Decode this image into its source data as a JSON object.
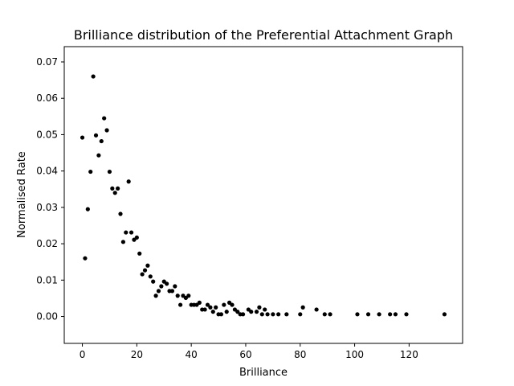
{
  "chart_data": {
    "type": "scatter",
    "title": "Brilliance distribution of the Preferential Attachment Graph",
    "xlabel": "Brilliance",
    "ylabel": "Normalised Rate",
    "xlim": [
      -6.65,
      139.65
    ],
    "ylim": [
      -0.0074,
      0.0742
    ],
    "xticks": [
      0,
      20,
      40,
      60,
      80,
      100,
      120
    ],
    "xtick_labels": [
      "0",
      "20",
      "40",
      "60",
      "80",
      "100",
      "120"
    ],
    "yticks": [
      0.0,
      0.01,
      0.02,
      0.03,
      0.04,
      0.05,
      0.06,
      0.07
    ],
    "ytick_labels": [
      "0.00",
      "0.01",
      "0.02",
      "0.03",
      "0.04",
      "0.05",
      "0.06",
      "0.07"
    ],
    "grid": false,
    "legend": "none",
    "marker_color": "#000000",
    "points": [
      {
        "x": 0,
        "y": 0.0492
      },
      {
        "x": 1,
        "y": 0.016
      },
      {
        "x": 2,
        "y": 0.0295
      },
      {
        "x": 3,
        "y": 0.0398
      },
      {
        "x": 4,
        "y": 0.066
      },
      {
        "x": 5,
        "y": 0.0498
      },
      {
        "x": 6,
        "y": 0.0443
      },
      {
        "x": 7,
        "y": 0.0482
      },
      {
        "x": 8,
        "y": 0.0545
      },
      {
        "x": 9,
        "y": 0.0512
      },
      {
        "x": 10,
        "y": 0.0398
      },
      {
        "x": 11,
        "y": 0.0352
      },
      {
        "x": 12,
        "y": 0.034
      },
      {
        "x": 13,
        "y": 0.0352
      },
      {
        "x": 14,
        "y": 0.0282
      },
      {
        "x": 15,
        "y": 0.0205
      },
      {
        "x": 16,
        "y": 0.0231
      },
      {
        "x": 17,
        "y": 0.0371
      },
      {
        "x": 18,
        "y": 0.0231
      },
      {
        "x": 19,
        "y": 0.0211
      },
      {
        "x": 20,
        "y": 0.0217
      },
      {
        "x": 21,
        "y": 0.0173
      },
      {
        "x": 22,
        "y": 0.0116
      },
      {
        "x": 23,
        "y": 0.0127
      },
      {
        "x": 24,
        "y": 0.014
      },
      {
        "x": 25,
        "y": 0.011
      },
      {
        "x": 26,
        "y": 0.0096
      },
      {
        "x": 27,
        "y": 0.0057
      },
      {
        "x": 28,
        "y": 0.007
      },
      {
        "x": 29,
        "y": 0.0083
      },
      {
        "x": 30,
        "y": 0.0096
      },
      {
        "x": 31,
        "y": 0.009
      },
      {
        "x": 32,
        "y": 0.007
      },
      {
        "x": 33,
        "y": 0.007
      },
      {
        "x": 34,
        "y": 0.0083
      },
      {
        "x": 35,
        "y": 0.0057
      },
      {
        "x": 36,
        "y": 0.0032
      },
      {
        "x": 37,
        "y": 0.0057
      },
      {
        "x": 38,
        "y": 0.0051
      },
      {
        "x": 39,
        "y": 0.0057
      },
      {
        "x": 40,
        "y": 0.0032
      },
      {
        "x": 41,
        "y": 0.0032
      },
      {
        "x": 42,
        "y": 0.0032
      },
      {
        "x": 43,
        "y": 0.0038
      },
      {
        "x": 44,
        "y": 0.0019
      },
      {
        "x": 45,
        "y": 0.0019
      },
      {
        "x": 46,
        "y": 0.0032
      },
      {
        "x": 47,
        "y": 0.0025
      },
      {
        "x": 48,
        "y": 0.0013
      },
      {
        "x": 49,
        "y": 0.0025
      },
      {
        "x": 50,
        "y": 0.0006
      },
      {
        "x": 51,
        "y": 0.0006
      },
      {
        "x": 52,
        "y": 0.0032
      },
      {
        "x": 53,
        "y": 0.0013
      },
      {
        "x": 54,
        "y": 0.0038
      },
      {
        "x": 55,
        "y": 0.0032
      },
      {
        "x": 56,
        "y": 0.0019
      },
      {
        "x": 57,
        "y": 0.0013
      },
      {
        "x": 58,
        "y": 0.0006
      },
      {
        "x": 59,
        "y": 0.0006
      },
      {
        "x": 61,
        "y": 0.0019
      },
      {
        "x": 62,
        "y": 0.0013
      },
      {
        "x": 64,
        "y": 0.0013
      },
      {
        "x": 65,
        "y": 0.0025
      },
      {
        "x": 66,
        "y": 0.0006
      },
      {
        "x": 67,
        "y": 0.0019
      },
      {
        "x": 68,
        "y": 0.0006
      },
      {
        "x": 70,
        "y": 0.0006
      },
      {
        "x": 72,
        "y": 0.0006
      },
      {
        "x": 75,
        "y": 0.0006
      },
      {
        "x": 80,
        "y": 0.0006
      },
      {
        "x": 81,
        "y": 0.0025
      },
      {
        "x": 86,
        "y": 0.0019
      },
      {
        "x": 89,
        "y": 0.0006
      },
      {
        "x": 91,
        "y": 0.0006
      },
      {
        "x": 101,
        "y": 0.0006
      },
      {
        "x": 105,
        "y": 0.0006
      },
      {
        "x": 109,
        "y": 0.0006
      },
      {
        "x": 113,
        "y": 0.0006
      },
      {
        "x": 115,
        "y": 0.0006
      },
      {
        "x": 119,
        "y": 0.0006
      },
      {
        "x": 133,
        "y": 0.0006
      }
    ]
  }
}
